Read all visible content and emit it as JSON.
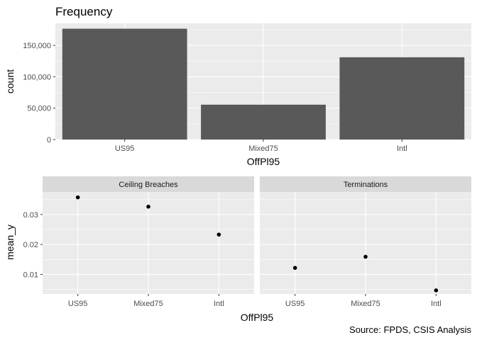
{
  "source_note": "Source: FPDS, CSIS Analysis",
  "colors": {
    "panel_bg": "#ebebeb",
    "grid": "#ffffff",
    "bar": "#595959",
    "point": "#000000",
    "strip_bg": "#d9d9d9",
    "text": "#1a1a1a",
    "tick_text": "#4d4d4d"
  },
  "chart_data": [
    {
      "type": "bar",
      "title": "Frequency",
      "xlabel": "OffPl95",
      "ylabel": "count",
      "categories": [
        "US95",
        "Mixed75",
        "Intl"
      ],
      "values": [
        176500,
        55500,
        131000
      ],
      "ylim": [
        0,
        185000
      ],
      "yticks": [
        0,
        50000,
        100000,
        150000
      ],
      "ytick_labels": [
        "0",
        "50,000",
        "100,000",
        "150,000"
      ],
      "grid": true
    },
    {
      "type": "scatter",
      "xlabel": "OffPl95",
      "ylabel": "mean_y",
      "ylim": [
        0.0035,
        0.0375
      ],
      "yticks": [
        0.01,
        0.02,
        0.03
      ],
      "ytick_labels": [
        "0.01",
        "0.02",
        "0.03"
      ],
      "grid": true,
      "facets": [
        {
          "strip": "Ceiling Breaches",
          "categories": [
            "US95",
            "Mixed75",
            "Intl"
          ],
          "values": [
            0.0357,
            0.0326,
            0.0233
          ]
        },
        {
          "strip": "Terminations",
          "categories": [
            "US95",
            "Mixed75",
            "Intl"
          ],
          "values": [
            0.0122,
            0.0159,
            0.0047
          ]
        }
      ]
    }
  ]
}
